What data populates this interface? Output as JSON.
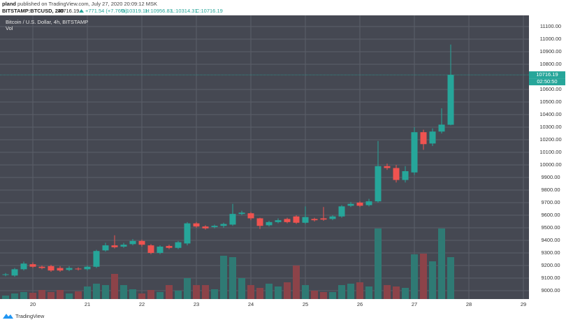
{
  "header": {
    "author": "pland",
    "published": "published on TradingView.com, July 27, 2020 20:09:12 MSK"
  },
  "chart_data": {
    "type": "candlestick",
    "symbol": "BITSTAMP:BTCUSD, 240",
    "last": "10716.19",
    "change": "+771.54 (+7.76%)",
    "ohlc_legend": [
      "O:10319.11",
      "H:10956.83",
      "L:10314.31",
      "C:10716.19"
    ],
    "title": "Bitcoin / U.S. Dollar, 4h, BITSTAMP",
    "volume_label": "Vol",
    "last_price_label": "10716.19",
    "countdown": "02:50:50",
    "categories": [
      null,
      null,
      null,
      "20",
      null,
      null,
      null,
      null,
      null,
      "21",
      null,
      null,
      null,
      null,
      null,
      "22",
      null,
      null,
      null,
      null,
      null,
      "23",
      null,
      null,
      null,
      null,
      null,
      "24",
      null,
      null,
      null,
      null,
      null,
      "25",
      null,
      null,
      null,
      null,
      null,
      "26",
      null,
      null,
      null,
      null,
      null,
      "27",
      null,
      null,
      null,
      null,
      null,
      "28",
      null,
      null,
      null,
      null,
      null,
      "29"
    ],
    "open": [
      9125,
      9120,
      9170,
      9210,
      9190,
      9195,
      9180,
      9165,
      9175,
      9170,
      9190,
      9320,
      9360,
      9350,
      9370,
      9395,
      9360,
      9300,
      9355,
      9340,
      9375,
      9535,
      9510,
      9505,
      9515,
      9525,
      9610,
      9615,
      9575,
      9520,
      9545,
      9570,
      9590,
      9540,
      9570,
      9575,
      9570,
      9590,
      9675,
      9700,
      9680,
      9710,
      9990,
      9975,
      9880,
      9940,
      10260,
      10170,
      10265,
      10319.11,
      null,
      null,
      null,
      null,
      null,
      null,
      null,
      null
    ],
    "high": [
      9140,
      9180,
      9230,
      9225,
      9200,
      9205,
      9195,
      9195,
      9185,
      9200,
      9325,
      9380,
      9440,
      9380,
      9410,
      9405,
      9370,
      9360,
      9365,
      9395,
      9545,
      9545,
      9520,
      9525,
      9540,
      9690,
      9635,
      9625,
      9580,
      9555,
      9575,
      9580,
      9600,
      9670,
      9580,
      9665,
      9600,
      9680,
      9705,
      9710,
      9730,
      10190,
      10010,
      10000,
      9990,
      10300,
      10280,
      10290,
      10450,
      10956.83,
      null,
      null,
      null,
      null,
      null,
      null,
      null,
      null
    ],
    "low": [
      9115,
      9110,
      9160,
      9180,
      9170,
      9150,
      9150,
      9155,
      9160,
      9160,
      9180,
      9310,
      9335,
      9340,
      9360,
      9350,
      9290,
      9290,
      9330,
      9330,
      9360,
      9500,
      9485,
      9495,
      9500,
      9515,
      9600,
      9560,
      9490,
      9510,
      9535,
      9535,
      9530,
      9530,
      9550,
      9555,
      9560,
      9580,
      9665,
      9665,
      9670,
      9700,
      9960,
      9860,
      9860,
      9920,
      10120,
      10150,
      10250,
      10314.31,
      null,
      null,
      null,
      null,
      null,
      null,
      null,
      null
    ],
    "close": [
      9130,
      9170,
      9215,
      9190,
      9180,
      9160,
      9160,
      9180,
      9170,
      9190,
      9315,
      9360,
      9345,
      9365,
      9395,
      9365,
      9300,
      9350,
      9340,
      9385,
      9535,
      9510,
      9495,
      9515,
      9530,
      9610,
      9620,
      9575,
      9515,
      9545,
      9560,
      9545,
      9540,
      9585,
      9560,
      9565,
      9590,
      9670,
      9690,
      9675,
      9710,
      9990,
      9975,
      9880,
      9950,
      10260,
      10165,
      10265,
      10320,
      10716.19,
      null,
      null,
      null,
      null,
      null,
      null,
      null,
      null
    ],
    "volume": [
      5,
      8,
      10,
      9,
      13,
      10,
      13,
      8,
      11,
      18,
      22,
      20,
      36,
      20,
      14,
      8,
      13,
      10,
      20,
      12,
      30,
      20,
      20,
      14,
      62,
      60,
      30,
      20,
      16,
      22,
      18,
      24,
      48,
      20,
      12,
      10,
      10,
      20,
      22,
      24,
      18,
      101,
      20,
      18,
      16,
      64,
      65,
      54,
      101,
      60,
      null,
      null,
      null,
      null,
      null,
      null,
      null,
      null
    ],
    "up_color": "#26a69a",
    "down_color": "#ef5350",
    "volume_up_color": "#2f7a74",
    "volume_down_color": "#8c4349",
    "ylim": [
      8933,
      11189
    ],
    "yticks": [
      {
        "value": 9000,
        "label": "9000.00"
      },
      {
        "value": 9100,
        "label": "9100.00"
      },
      {
        "value": 9200,
        "label": "9200.00"
      },
      {
        "value": 9300,
        "label": "9300.00"
      },
      {
        "value": 9400,
        "label": "9400.00"
      },
      {
        "value": 9500,
        "label": "9500.00"
      },
      {
        "value": 9600,
        "label": "9600.00"
      },
      {
        "value": 9700,
        "label": "9700.00"
      },
      {
        "value": 9800,
        "label": "9800.00"
      },
      {
        "value": 9900,
        "label": "9900.00"
      },
      {
        "value": 10000,
        "label": "10000.00"
      },
      {
        "value": 10100,
        "label": "10100.00"
      },
      {
        "value": 10200,
        "label": "10200.00"
      },
      {
        "value": 10300,
        "label": "10300.00"
      },
      {
        "value": 10400,
        "label": "10400.00"
      },
      {
        "value": 10500,
        "label": "10500.00"
      },
      {
        "value": 10600,
        "label": "10600.00"
      },
      {
        "value": 10800,
        "label": "10800.00"
      },
      {
        "value": 10900,
        "label": "10900.00"
      },
      {
        "value": 11000,
        "label": "11000.00"
      },
      {
        "value": 11100,
        "label": "11100.00"
      }
    ],
    "grid": true
  },
  "footer": "TradingView"
}
